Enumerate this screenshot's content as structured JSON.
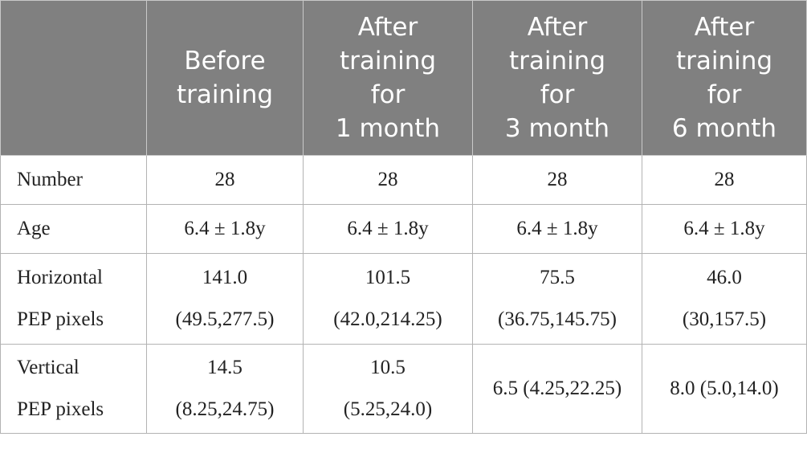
{
  "table": {
    "headers": [
      "",
      "Before\ntraining",
      "After\ntraining\nfor\n1 month",
      "After\ntraining\nfor\n3 month",
      "After\ntraining\nfor\n6 month"
    ],
    "rows": [
      {
        "label": [
          "Number"
        ],
        "cells": [
          [
            "28"
          ],
          [
            "28"
          ],
          [
            "28"
          ],
          [
            "28"
          ]
        ]
      },
      {
        "label": [
          "Age"
        ],
        "cells": [
          [
            "6.4 ± 1.8y"
          ],
          [
            "6.4 ± 1.8y"
          ],
          [
            "6.4 ± 1.8y"
          ],
          [
            "6.4 ± 1.8y"
          ]
        ]
      },
      {
        "label": [
          "Horizontal",
          "PEP pixels"
        ],
        "cells": [
          [
            "141.0",
            "(49.5,277.5)"
          ],
          [
            "101.5",
            "(42.0,214.25)"
          ],
          [
            "75.5",
            "(36.75,145.75)"
          ],
          [
            "46.0",
            "(30,157.5)"
          ]
        ]
      },
      {
        "label": [
          "Vertical",
          "PEP pixels"
        ],
        "cells": [
          [
            "14.5",
            "(8.25,24.75)"
          ],
          [
            "10.5",
            "(5.25,24.0)"
          ],
          [
            "6.5 (4.25,22.25)"
          ],
          [
            "8.0 (5.0,14.0)"
          ]
        ]
      }
    ]
  }
}
